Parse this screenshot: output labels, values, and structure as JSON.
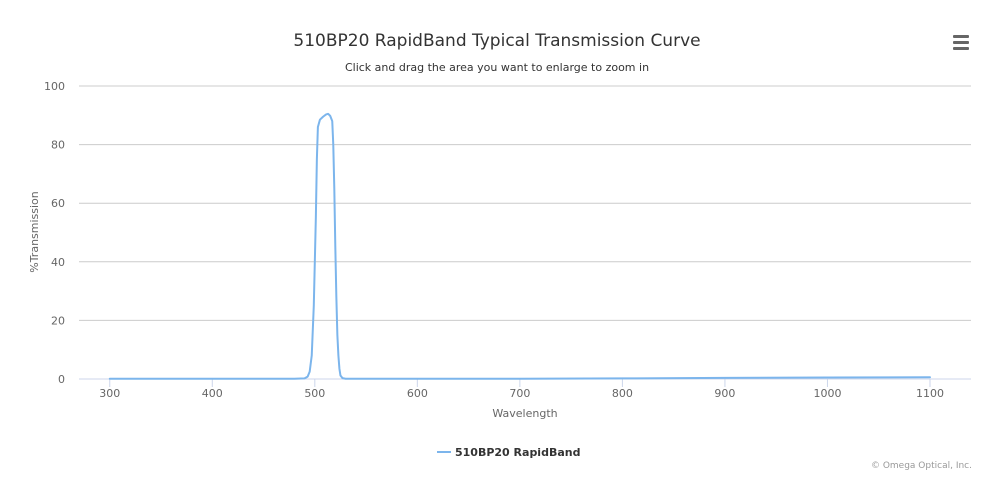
{
  "chart_data": {
    "type": "line",
    "title": "510BP20 RapidBand Typical Transmission Curve",
    "subtitle": "Click and drag the area you want to enlarge to zoom in",
    "xlabel": "Wavelength",
    "ylabel": "%Transmission",
    "xlim": [
      270,
      1140
    ],
    "ylim": [
      0,
      100
    ],
    "x_ticks": [
      300,
      400,
      500,
      600,
      700,
      800,
      900,
      1000,
      1100
    ],
    "y_ticks": [
      0,
      20,
      40,
      60,
      80,
      100
    ],
    "grid": true,
    "legend_position": "bottom-center",
    "series": [
      {
        "name": "510BP20 RapidBand",
        "color": "#7cb5ec",
        "points": [
          [
            300,
            0.1
          ],
          [
            400,
            0.1
          ],
          [
            480,
            0.1
          ],
          [
            490,
            0.2
          ],
          [
            493,
            0.8
          ],
          [
            495,
            2.5
          ],
          [
            497,
            8
          ],
          [
            499,
            25
          ],
          [
            501,
            55
          ],
          [
            502,
            75
          ],
          [
            503,
            86
          ],
          [
            505,
            88.5
          ],
          [
            508,
            89.5
          ],
          [
            511,
            90.3
          ],
          [
            513,
            90.5
          ],
          [
            515,
            89.8
          ],
          [
            517,
            88.0
          ],
          [
            518,
            80
          ],
          [
            519,
            65
          ],
          [
            520,
            45
          ],
          [
            521,
            28
          ],
          [
            522,
            15
          ],
          [
            523,
            8
          ],
          [
            524,
            3.5
          ],
          [
            525,
            1.2
          ],
          [
            527,
            0.3
          ],
          [
            530,
            0.1
          ],
          [
            600,
            0.1
          ],
          [
            700,
            0.1
          ],
          [
            800,
            0.2
          ],
          [
            900,
            0.4
          ],
          [
            1000,
            0.5
          ],
          [
            1100,
            0.6
          ]
        ]
      }
    ]
  },
  "credits": "© Omega Optical, Inc.",
  "menu": {
    "icon": "hamburger-menu-icon"
  }
}
